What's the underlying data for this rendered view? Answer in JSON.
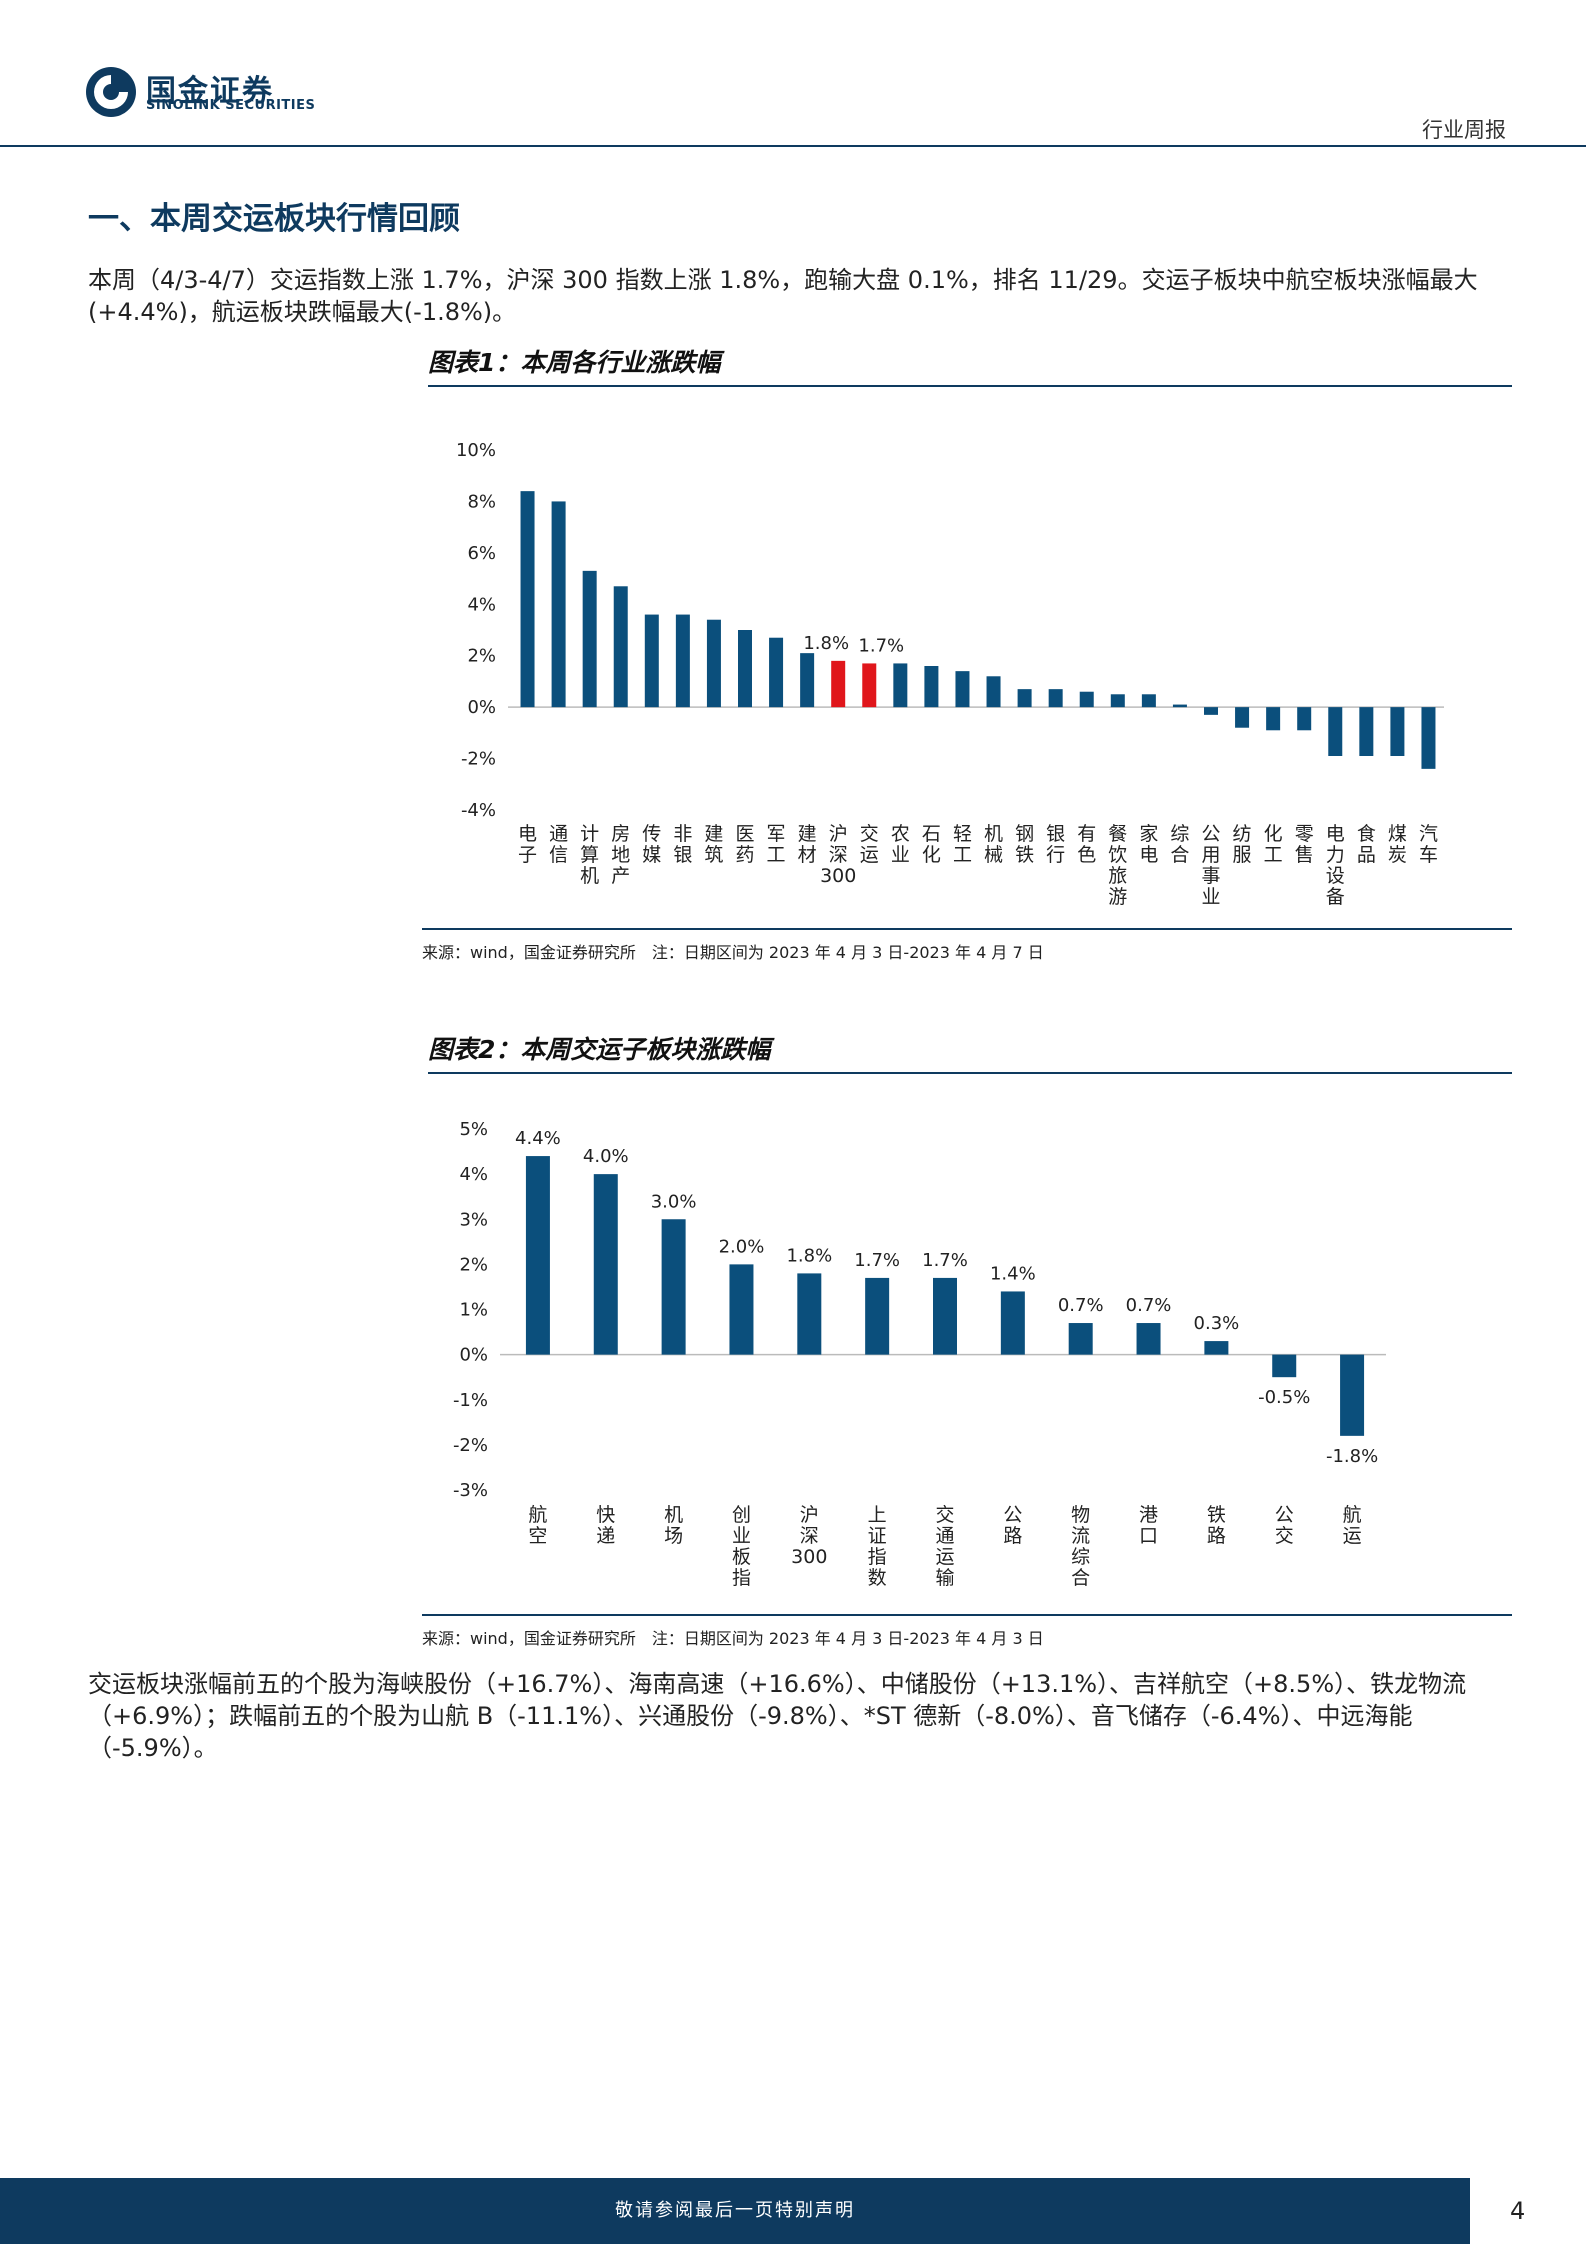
{
  "header": {
    "logo_cn": "国金证券",
    "logo_en": "SINOLINK SECURITIES",
    "report_type": "行业周报"
  },
  "section": {
    "title": "一、本周交运板块行情回顾",
    "para1": "本周（4/3-4/7）交运指数上涨 1.7%，沪深 300 指数上涨 1.8%，跑输大盘 0.1%，排名 11/29。交运子板块中航空板块涨幅最大(+4.4%)，航运板块跌幅最大(-1.8%)。",
    "para2": "交运板块涨幅前五的个股为海峡股份（+16.7%）、海南高速（+16.6%）、中储股份（+13.1%）、吉祥航空（+8.5%）、铁龙物流（+6.9%）；跌幅前五的个股为山航 B（-11.1%）、兴通股份（-9.8%）、*ST 德新（-8.0%）、音飞储存（-6.4%）、中远海能（-5.9%）。"
  },
  "figure1": {
    "title": "图表1：本周各行业涨跌幅",
    "source": "来源：wind，国金证券研究所　注：日期区间为 2023 年 4 月 3 日-2023 年 4 月 7 日"
  },
  "figure2": {
    "title": "图表2：本周交运子板块涨跌幅",
    "source": "来源：wind，国金证券研究所　注：日期区间为 2023 年 4 月 3 日-2023 年 4 月 3 日"
  },
  "footer": {
    "disclaimer": "敬请参阅最后一页特别声明",
    "page": "4"
  },
  "colors": {
    "primary": "#0e3a5f",
    "bar": "#0b4f7c",
    "highlight": "#e0161b"
  },
  "chart_data": [
    {
      "type": "bar",
      "title": "本周各行业涨跌幅",
      "ylim": [
        -4,
        10
      ],
      "yticks": [
        "-4%",
        "-2%",
        "0%",
        "2%",
        "4%",
        "6%",
        "8%",
        "10%"
      ],
      "categories": [
        "电子",
        "通信",
        "计算机",
        "房地产",
        "传媒",
        "非银",
        "建筑",
        "医药",
        "军工",
        "建材",
        "沪深300",
        "交运",
        "农业",
        "石化",
        "轻工",
        "机械",
        "钢铁",
        "银行",
        "有色",
        "餐饮旅游",
        "家电",
        "综合",
        "公用事业",
        "纺服",
        "化工",
        "零售",
        "电力设备",
        "食品",
        "煤炭",
        "汽车"
      ],
      "values": [
        8.4,
        8.0,
        5.3,
        4.7,
        3.6,
        3.6,
        3.4,
        3.0,
        2.7,
        2.1,
        1.8,
        1.7,
        1.7,
        1.6,
        1.4,
        1.2,
        0.7,
        0.7,
        0.6,
        0.5,
        0.5,
        0.1,
        -0.3,
        -0.8,
        -0.9,
        -0.9,
        -1.9,
        -1.9,
        -1.9,
        -2.4
      ],
      "highlight": [
        "沪深300",
        "交运"
      ],
      "labels": [
        {
          "category": "沪深300",
          "text": "1.8%"
        },
        {
          "category": "交运",
          "text": "1.7%"
        }
      ]
    },
    {
      "type": "bar",
      "title": "本周交运子板块涨跌幅",
      "ylim": [
        -3,
        5
      ],
      "yticks": [
        "-3%",
        "-2%",
        "-1%",
        "0%",
        "1%",
        "2%",
        "3%",
        "4%",
        "5%"
      ],
      "categories": [
        "航空",
        "快递",
        "机场",
        "创业板指",
        "沪深300",
        "上证指数",
        "交通运输",
        "公路",
        "物流综合",
        "港口",
        "铁路",
        "公交",
        "航运"
      ],
      "values": [
        4.4,
        4.0,
        3.0,
        2.0,
        1.8,
        1.7,
        1.7,
        1.4,
        0.7,
        0.7,
        0.3,
        -0.5,
        -1.8
      ],
      "data_labels": [
        "4.4%",
        "4.0%",
        "3.0%",
        "2.0%",
        "1.8%",
        "1.7%",
        "1.7%",
        "1.4%",
        "0.7%",
        "0.7%",
        "0.3%",
        "-0.5%",
        "-1.8%"
      ]
    }
  ]
}
